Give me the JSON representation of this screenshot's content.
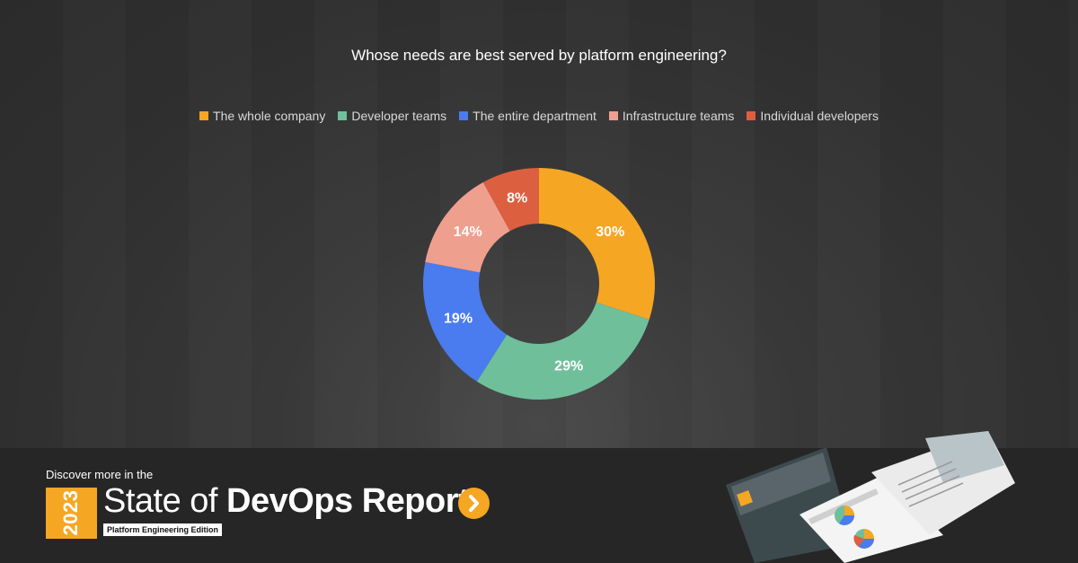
{
  "chart_data": {
    "type": "pie",
    "donut": true,
    "title": "Whose needs are best served by platform engineering?",
    "legend_position": "top",
    "categories": [
      "The whole company",
      "Developer teams",
      "The entire department",
      "Infrastructure teams",
      "Individual developers"
    ],
    "values": [
      30,
      29,
      19,
      14,
      8
    ],
    "labels": [
      "30%",
      "29%",
      "19%",
      "14%",
      "8%"
    ],
    "colors": [
      "#f5a623",
      "#6fbf9b",
      "#4a7bef",
      "#ef9f8e",
      "#dc5f3f"
    ]
  },
  "footer": {
    "discover_text": "Discover more in the",
    "year": "2023",
    "report_title_light": "State of",
    "report_title_bold": "DevOps Report",
    "edition": "Platform Engineering Edition",
    "button_icon": "chevron-right-icon",
    "accent_color": "#f5a623"
  }
}
